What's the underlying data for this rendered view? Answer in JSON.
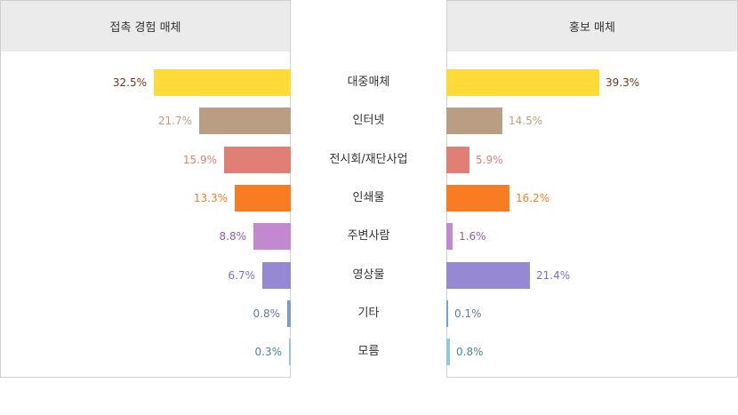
{
  "chart_data": {
    "type": "bar",
    "orientation": "horizontal-butterfly",
    "categories": [
      "대중매체",
      "인터넷",
      "전시회/재단사업",
      "인쇄물",
      "주변사람",
      "영상물",
      "기타",
      "모름"
    ],
    "series": [
      {
        "name": "접촉 경험 매체",
        "values": [
          32.5,
          21.7,
          15.9,
          13.3,
          8.8,
          6.7,
          0.8,
          0.3
        ]
      },
      {
        "name": "홍보 매체",
        "values": [
          39.3,
          14.5,
          5.9,
          16.2,
          1.6,
          21.4,
          0.1,
          0.8
        ]
      }
    ],
    "colors": [
      "#ffdb3a",
      "#b99e84",
      "#e07f74",
      "#f97c22",
      "#c288d0",
      "#9688d3",
      "#7b9ccf",
      "#8ccad6"
    ],
    "label_colors": [
      "#6b3a1a",
      "#b99e84",
      "#e07f74",
      "#f97c22",
      "#9a5aa8",
      "#7f72c4",
      "#5c7aa8",
      "#4a8a96"
    ],
    "title": "",
    "xlabel": "",
    "ylabel": "",
    "value_suffix": "%"
  },
  "headers": {
    "left": "접촉 경험 매체",
    "right": "홍보 매체"
  }
}
